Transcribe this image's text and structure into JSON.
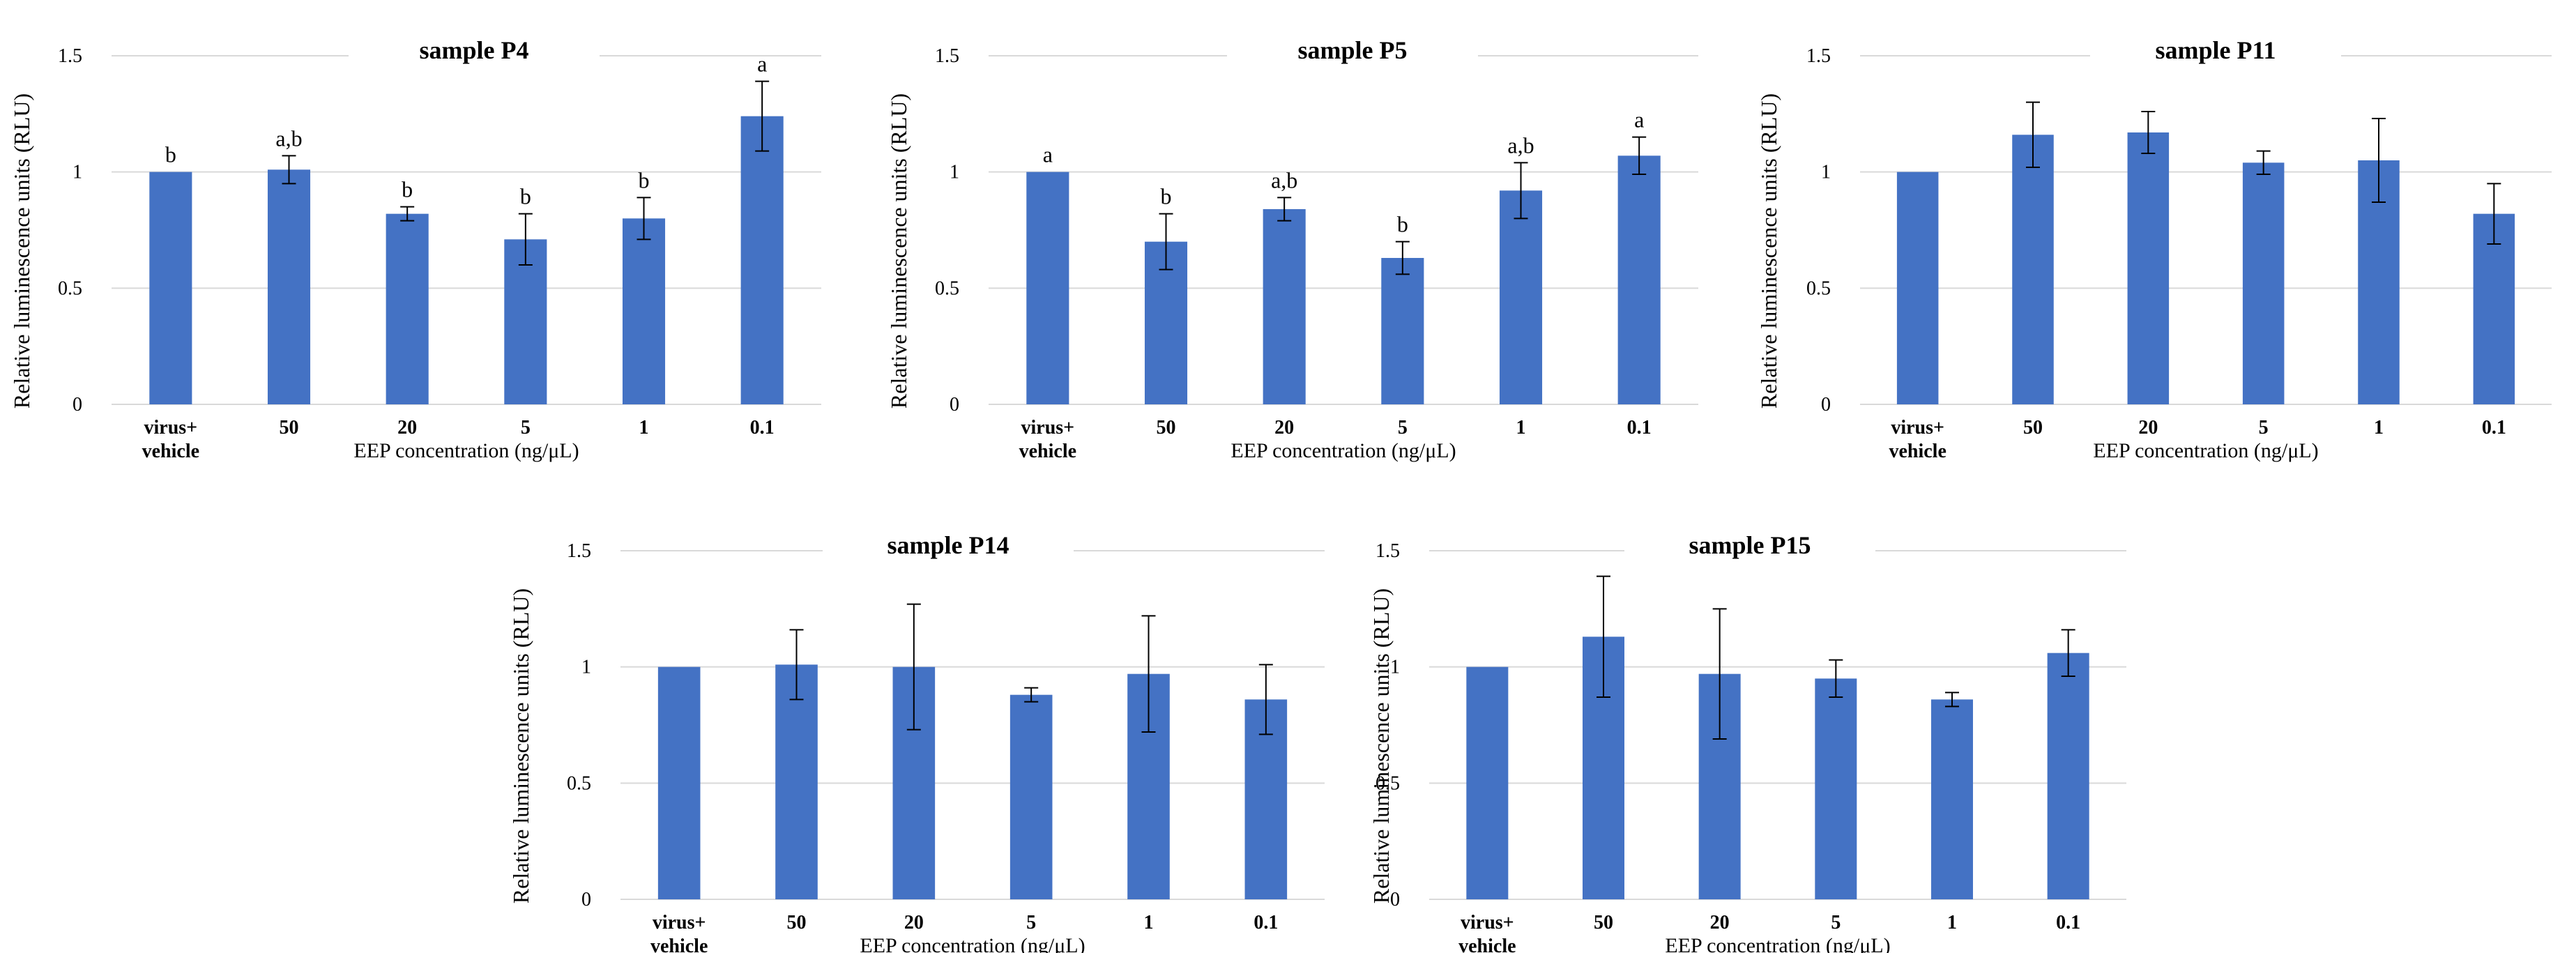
{
  "colors": {
    "bar": "#4472C4",
    "grid": "#D9D9D9",
    "text": "#000000",
    "error": "#000000"
  },
  "chart_data": [
    {
      "type": "bar",
      "title": "sample P4",
      "xlabel": "EEP concentration (ng/μL)",
      "ylabel": "Relative luminescence units (RLU)",
      "categories": [
        "virus+\nvehicle",
        "50",
        "20",
        "5",
        "1",
        "0.1"
      ],
      "values": [
        1.0,
        1.01,
        0.82,
        0.71,
        0.8,
        1.24
      ],
      "errors": [
        0.0,
        0.06,
        0.03,
        0.11,
        0.09,
        0.15
      ],
      "labels": [
        "b",
        "a,b",
        "b",
        "b",
        "b",
        "a"
      ],
      "yticks": [
        "0",
        "0.5",
        "1",
        "1.5"
      ],
      "ylim": [
        0,
        1.5
      ],
      "grid": true
    },
    {
      "type": "bar",
      "title": "sample P5",
      "xlabel": "EEP concentration (ng/μL)",
      "ylabel": "Relative luminescence units (RLU)",
      "categories": [
        "virus+\nvehicle",
        "50",
        "20",
        "5",
        "1",
        "0.1"
      ],
      "values": [
        1.0,
        0.7,
        0.84,
        0.63,
        0.92,
        1.07
      ],
      "errors": [
        0.0,
        0.12,
        0.05,
        0.07,
        0.12,
        0.08
      ],
      "labels": [
        "a",
        "b",
        "a,b",
        "b",
        "a,b",
        "a"
      ],
      "yticks": [
        "0",
        "0.5",
        "1",
        "1.5"
      ],
      "ylim": [
        0,
        1.5
      ],
      "grid": true
    },
    {
      "type": "bar",
      "title": "sample P11",
      "xlabel": "EEP concentration (ng/μL)",
      "ylabel": "Relative luminescence units (RLU)",
      "categories": [
        "virus+\nvehicle",
        "50",
        "20",
        "5",
        "1",
        "0.1"
      ],
      "values": [
        1.0,
        1.16,
        1.17,
        1.04,
        1.05,
        0.82
      ],
      "errors": [
        0.0,
        0.14,
        0.09,
        0.05,
        0.18,
        0.13
      ],
      "labels": [],
      "yticks": [
        "0",
        "0.5",
        "1",
        "1.5"
      ],
      "ylim": [
        0,
        1.5
      ],
      "grid": true
    },
    {
      "type": "bar",
      "title": "sample P14",
      "xlabel": "EEP concentration (ng/μL)",
      "ylabel": "Relative luminescence units (RLU)",
      "categories": [
        "virus+\nvehicle",
        "50",
        "20",
        "5",
        "1",
        "0.1"
      ],
      "values": [
        1.0,
        1.01,
        1.0,
        0.88,
        0.97,
        0.86
      ],
      "errors": [
        0.0,
        0.15,
        0.27,
        0.03,
        0.25,
        0.15
      ],
      "labels": [],
      "yticks": [
        "0",
        "0.5",
        "1",
        "1.5"
      ],
      "ylim": [
        0,
        1.5
      ],
      "grid": true
    },
    {
      "type": "bar",
      "title": "sample P15",
      "xlabel": "EEP concentration (ng/μL)",
      "ylabel": "Relative luminescence units (RLU)",
      "categories": [
        "virus+\nvehicle",
        "50",
        "20",
        "5",
        "1",
        "0.1"
      ],
      "values": [
        1.0,
        1.13,
        0.97,
        0.95,
        0.86,
        1.06
      ],
      "errors": [
        0.0,
        0.26,
        0.28,
        0.08,
        0.03,
        0.1
      ],
      "labels": [],
      "yticks": [
        "0",
        "0.5",
        "1",
        "1.5"
      ],
      "ylim": [
        0,
        1.5
      ],
      "grid": true
    }
  ]
}
